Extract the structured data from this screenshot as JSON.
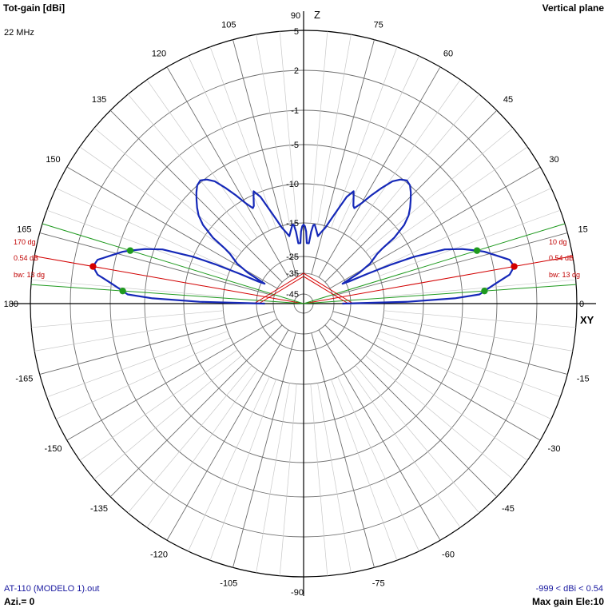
{
  "header": {
    "title": "Tot-gain [dBi]",
    "frequency": "22 MHz",
    "plane": "Vertical plane"
  },
  "footer": {
    "file": "AT-110 (MODELO 1).out",
    "azimuth": "Azi.= 0",
    "range": "-999 < dBi < 0.54",
    "max_gain": "Max gain Ele:10"
  },
  "axis_labels": {
    "top": "Z",
    "right": "XY"
  },
  "angle_ticks": [
    "0",
    "15",
    "30",
    "45",
    "60",
    "75",
    "90",
    "105",
    "120",
    "135",
    "150",
    "165",
    "180",
    "-165",
    "-150",
    "-135",
    "-120",
    "-105",
    "-90",
    "-75",
    "-60",
    "-45",
    "-30",
    "-15"
  ],
  "ring_labels": [
    "5",
    "2",
    "-1",
    "-5",
    "-10",
    "-15",
    "-25",
    "-35",
    "-45"
  ],
  "markers": {
    "right": {
      "angle": "10 dg",
      "gain": "0.54 dB",
      "bw": "bw: 13 dg"
    },
    "left": {
      "angle": "170 dg",
      "gain": "0.54 dB",
      "bw": "bw: 13 dg"
    }
  },
  "colors": {
    "pattern": "#1528b8",
    "max_line": "#d40000",
    "bw_line": "#1f9a1f",
    "grid": "#6e6e6e",
    "ring_fill": "#f4f4f4"
  },
  "chart_data": {
    "type": "polar",
    "unit": "dBi",
    "scale_max": 5,
    "rings_dBi": [
      5,
      2,
      -1,
      -5,
      -10,
      -15,
      -25,
      -35,
      -45
    ],
    "max_gain_dBi": 0.54,
    "max_gain_elevation_deg": 10,
    "beamwidth_deg": 13,
    "bw_edges_deg": [
      4,
      17
    ],
    "series": [
      {
        "points": [
          [
            0,
            -30
          ],
          [
            1,
            -12
          ],
          [
            2,
            -6
          ],
          [
            3,
            -3
          ],
          [
            4,
            -2.4
          ],
          [
            6,
            -1.0
          ],
          [
            8,
            0.1
          ],
          [
            10,
            0.54
          ],
          [
            12,
            0.3
          ],
          [
            14,
            -0.6
          ],
          [
            16,
            -1.6
          ],
          [
            17,
            -2.4
          ],
          [
            19,
            -4
          ],
          [
            21,
            -6
          ],
          [
            23,
            -10
          ],
          [
            24,
            -13
          ],
          [
            25,
            -18
          ],
          [
            26,
            -24
          ],
          [
            27,
            -27
          ],
          [
            29,
            -20
          ],
          [
            31,
            -16
          ],
          [
            33,
            -14.5
          ],
          [
            34,
            -14.0
          ],
          [
            35,
            -13.0
          ],
          [
            36,
            -11.0
          ],
          [
            38,
            -9.0
          ],
          [
            40,
            -7.8
          ],
          [
            42,
            -7.0
          ],
          [
            44,
            -6.3
          ],
          [
            46,
            -5.6
          ],
          [
            48,
            -5.0
          ],
          [
            50,
            -4.8
          ],
          [
            52,
            -5.2
          ],
          [
            54,
            -6.0
          ],
          [
            56,
            -7.5
          ],
          [
            58,
            -9.0
          ],
          [
            60,
            -10.5
          ],
          [
            62,
            -11.5
          ],
          [
            63,
            -11.3
          ],
          [
            65,
            -10.2
          ],
          [
            66,
            -9.6
          ],
          [
            68,
            -10.6
          ],
          [
            70,
            -12.5
          ],
          [
            72,
            -14
          ],
          [
            74,
            -15.5
          ],
          [
            76,
            -17
          ],
          [
            78,
            -18.5
          ],
          [
            80,
            -17
          ],
          [
            82,
            -15.3
          ],
          [
            83,
            -15.5
          ],
          [
            84,
            -17.5
          ],
          [
            85,
            -21
          ],
          [
            87,
            -21
          ],
          [
            88,
            -17.5
          ],
          [
            89,
            -16
          ],
          [
            90,
            -15.5
          ]
        ]
      }
    ]
  }
}
